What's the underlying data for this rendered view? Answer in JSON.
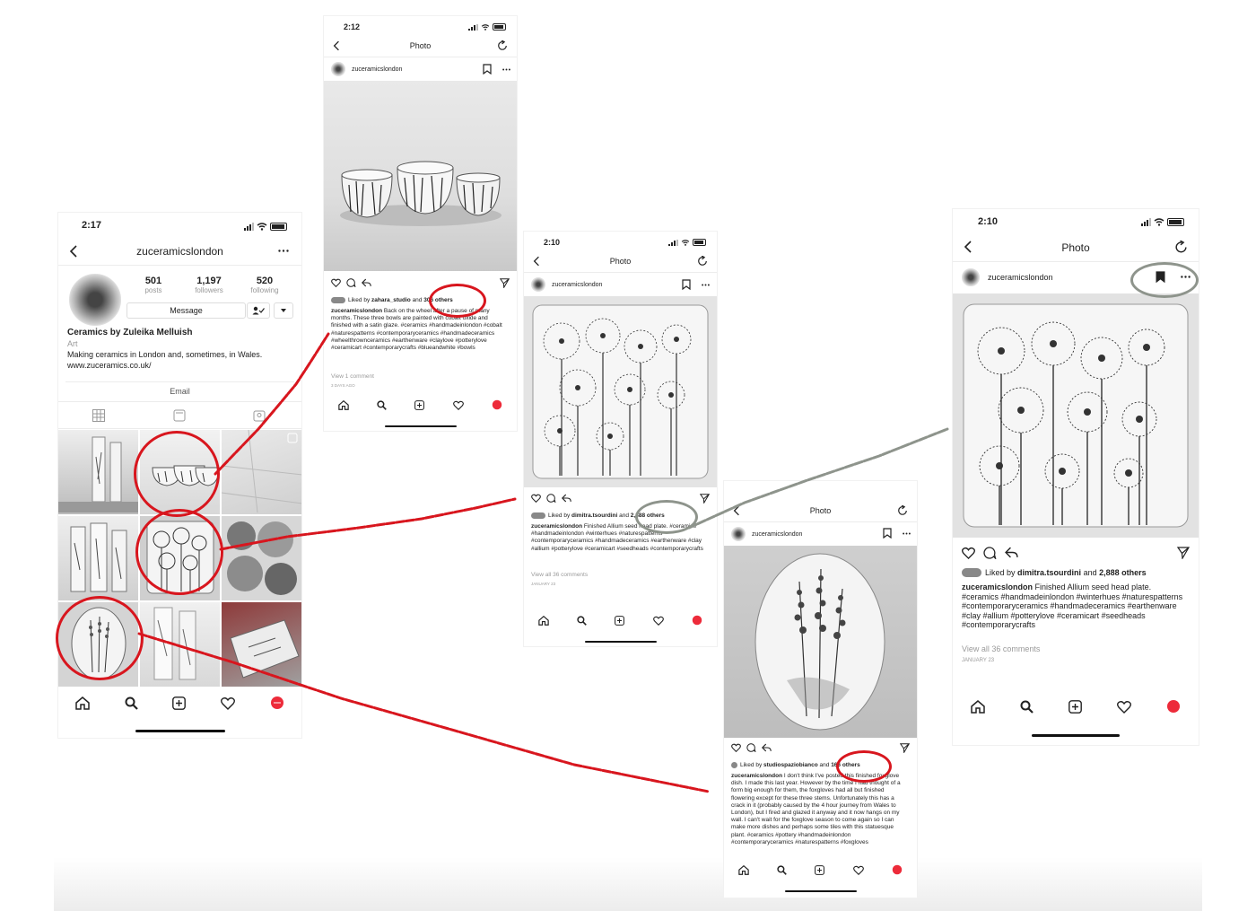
{
  "profile": {
    "time": "2:17",
    "username": "zuceramicslondon",
    "posts_count": "501",
    "posts_label": "posts",
    "followers_count": "1,197",
    "followers_label": "followers",
    "following_count": "520",
    "following_label": "following",
    "message_button": "Message",
    "display_name": "Ceramics by Zuleika Melluish",
    "category": "Art",
    "bio": "Making ceramics in London and, sometimes, in Wales.",
    "website": "www.zuceramics.co.uk/",
    "email_button": "Email"
  },
  "post_bowls": {
    "time": "2:12",
    "header": "Photo",
    "username": "zuceramicslondon",
    "liked_prefix": "Liked by",
    "liked_user": "zahara_studio",
    "liked_and": "and",
    "liked_others": "306 others",
    "caption_user": "zuceramicslondon",
    "caption_text": "Back on the wheel after a pause of many months. These three bowls are painted with cobalt oxide and finished with a satin glaze. #ceramics #handmadeinlondon #cobalt #naturespatterns #contemporaryceramics #handmadeceramics #wheelthrownceramics #earthenware #claylove #potterylove #ceramicart #contemporarycrafts #blueandwhite #bowls",
    "comments_link": "View 1 comment",
    "date": "3 DAYS AGO"
  },
  "post_allium_small": {
    "time": "2:10",
    "header": "Photo",
    "username": "zuceramicslondon",
    "liked_prefix": "Liked by",
    "liked_user": "dimitra.tsourdini",
    "liked_and": "and",
    "liked_others": "2,888 others",
    "caption_user": "zuceramicslondon",
    "caption_text": "Finished Allium seed head plate. #ceramics #handmadeinlondon #winterhues #naturespatterns #contemporaryceramics #handmadeceramics #earthenware #clay #allium #potterylove #ceramicart #seedheads #contemporarycrafts",
    "comments_link": "View all 36 comments",
    "date": "JANUARY 23"
  },
  "post_foxglove": {
    "header": "Photo",
    "username": "zuceramicslondon",
    "liked_prefix": "Liked by",
    "liked_user": "studiospaziobianco",
    "liked_and": "and",
    "liked_others": "166 others",
    "caption_user": "zuceramicslondon",
    "caption_text": "I don't think I've posted this finished foxglove dish. I made this last year. However by the time I had thought of a form big enough for them, the foxgloves had all but finished flowering except for these three stems. Unfortunately this has a crack in it (probably caused by the 4 hour journey from Wales to London), but I fired and glazed it anyway and it now hangs on my wall. I can't wait for the foxglove season to come again so I can make more dishes and perhaps some tiles with this statuesque plant. #ceramics #pottery #handmadeinlondon #contemporaryceramics #naturespatterns #foxgloves"
  },
  "post_allium_large": {
    "time": "2:10",
    "header": "Photo",
    "username": "zuceramicslondon",
    "liked_prefix": "Liked by",
    "liked_user": "dimitra.tsourdini",
    "liked_and": "and",
    "liked_others": "2,888 others",
    "caption_user": "zuceramicslondon",
    "caption_text": "Finished Allium seed head plate. #ceramics #handmadeinlondon #winterhues #naturespatterns #contemporaryceramics #handmadeceramics #earthenware #clay #allium #potterylove #ceramicart #seedheads #contemporarycrafts",
    "comments_link": "View all 36 comments",
    "date": "JANUARY 23"
  },
  "icons": [
    "back-arrow-icon",
    "more-icon",
    "refresh-icon",
    "bookmark-icon",
    "heart-icon",
    "comment-icon",
    "share-icon",
    "send-icon",
    "home-icon",
    "search-icon",
    "add-icon",
    "profile-icon",
    "grid-icon",
    "igtv-icon",
    "tagged-icon",
    "follow-check-icon",
    "dropdown-icon"
  ],
  "colors": {
    "annotation_red": "#d8161e",
    "annotation_grey": "#8e948c",
    "profile_tab_red": "#ed2b3a",
    "text": "#222222",
    "muted": "#9a9a9a"
  }
}
